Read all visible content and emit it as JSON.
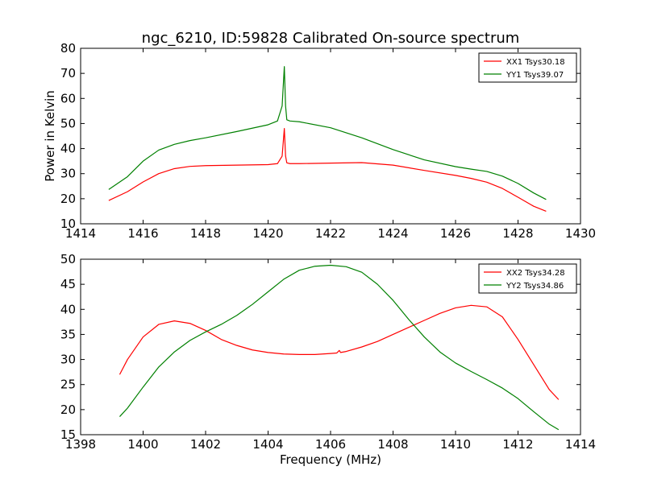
{
  "figure": {
    "title": "ngc_6210, ID:59828 Calibrated On-source spectrum"
  },
  "chart_data": [
    {
      "type": "line",
      "title": "ngc_6210, ID:59828 Calibrated On-source spectrum",
      "xlabel": "",
      "ylabel": "Power in Kelvin",
      "xlim": [
        1414,
        1430
      ],
      "ylim": [
        10,
        80
      ],
      "xticks": [
        "1414",
        "1416",
        "1418",
        "1420",
        "1422",
        "1424",
        "1426",
        "1428",
        "1430"
      ],
      "yticks": [
        "10",
        "20",
        "30",
        "40",
        "50",
        "60",
        "70",
        "80"
      ],
      "legend_position": "top-right",
      "grid": false,
      "series": [
        {
          "name": "XX1 Tsys30.18",
          "color": "#ff0000",
          "x": [
            1414.9,
            1415.5,
            1416.0,
            1416.5,
            1417.0,
            1417.5,
            1418.0,
            1419.0,
            1420.0,
            1420.3,
            1420.45,
            1420.52,
            1420.56,
            1420.6,
            1420.7,
            1421.0,
            1422.0,
            1423.0,
            1424.0,
            1425.0,
            1426.0,
            1426.5,
            1427.0,
            1427.5,
            1428.0,
            1428.5,
            1428.9
          ],
          "y": [
            19.3,
            22.8,
            26.7,
            30.0,
            32.0,
            32.9,
            33.2,
            33.4,
            33.6,
            34.0,
            37.0,
            48.0,
            37.0,
            34.3,
            34.0,
            34.0,
            34.2,
            34.4,
            33.4,
            31.3,
            29.3,
            28.1,
            26.6,
            24.1,
            20.6,
            17.0,
            15.0
          ]
        },
        {
          "name": "YY1 Tsys39.07",
          "color": "#008000",
          "x": [
            1414.9,
            1415.5,
            1416.0,
            1416.5,
            1417.0,
            1417.5,
            1418.0,
            1419.0,
            1420.0,
            1420.3,
            1420.45,
            1420.52,
            1420.56,
            1420.6,
            1420.7,
            1421.0,
            1422.0,
            1423.0,
            1424.0,
            1425.0,
            1426.0,
            1426.5,
            1427.0,
            1427.5,
            1428.0,
            1428.5,
            1428.9
          ],
          "y": [
            23.7,
            28.8,
            35.0,
            39.4,
            41.7,
            43.2,
            44.3,
            46.8,
            49.5,
            51.0,
            57.0,
            72.7,
            57.0,
            51.5,
            51.0,
            50.7,
            48.3,
            44.3,
            39.6,
            35.5,
            32.8,
            31.8,
            30.9,
            29.0,
            26.1,
            22.3,
            19.7
          ]
        }
      ]
    },
    {
      "type": "line",
      "title": "",
      "xlabel": "Frequency (MHz)",
      "ylabel": "",
      "xlim": [
        1398,
        1414
      ],
      "ylim": [
        15,
        50
      ],
      "xticks": [
        "1398",
        "1400",
        "1402",
        "1404",
        "1406",
        "1408",
        "1410",
        "1412",
        "1414"
      ],
      "yticks": [
        "15",
        "20",
        "25",
        "30",
        "35",
        "40",
        "45",
        "50"
      ],
      "legend_position": "top-right",
      "grid": false,
      "series": [
        {
          "name": "XX2 Tsys34.28",
          "color": "#ff0000",
          "x": [
            1399.25,
            1399.5,
            1400.0,
            1400.5,
            1401.0,
            1401.5,
            1402.0,
            1402.5,
            1403.0,
            1403.5,
            1404.0,
            1404.5,
            1405.0,
            1405.5,
            1406.0,
            1406.2,
            1406.28,
            1406.32,
            1406.5,
            1407.0,
            1407.5,
            1408.0,
            1408.5,
            1409.0,
            1409.5,
            1410.0,
            1410.5,
            1411.0,
            1411.5,
            1412.0,
            1412.5,
            1413.0,
            1413.3
          ],
          "y": [
            27.0,
            30.0,
            34.5,
            37.0,
            37.7,
            37.2,
            35.8,
            34.0,
            32.8,
            31.9,
            31.4,
            31.1,
            31.0,
            31.0,
            31.2,
            31.3,
            31.8,
            31.4,
            31.6,
            32.5,
            33.6,
            35.0,
            36.4,
            37.8,
            39.2,
            40.3,
            40.8,
            40.5,
            38.5,
            34.0,
            29.0,
            24.0,
            22.0
          ]
        },
        {
          "name": "YY2 Tsys34.86",
          "color": "#008000",
          "x": [
            1399.25,
            1399.5,
            1400.0,
            1400.5,
            1401.0,
            1401.5,
            1402.0,
            1402.5,
            1403.0,
            1403.5,
            1404.0,
            1404.5,
            1405.0,
            1405.5,
            1406.0,
            1406.5,
            1407.0,
            1407.5,
            1408.0,
            1408.5,
            1409.0,
            1409.5,
            1410.0,
            1410.5,
            1411.0,
            1411.5,
            1412.0,
            1412.5,
            1413.0,
            1413.3
          ],
          "y": [
            18.6,
            20.3,
            24.5,
            28.5,
            31.5,
            33.8,
            35.5,
            37.0,
            38.8,
            41.0,
            43.5,
            46.0,
            47.8,
            48.6,
            48.8,
            48.5,
            47.4,
            45.0,
            41.8,
            38.0,
            34.5,
            31.5,
            29.3,
            27.6,
            26.0,
            24.3,
            22.2,
            19.6,
            17.1,
            16.0
          ]
        }
      ]
    }
  ]
}
